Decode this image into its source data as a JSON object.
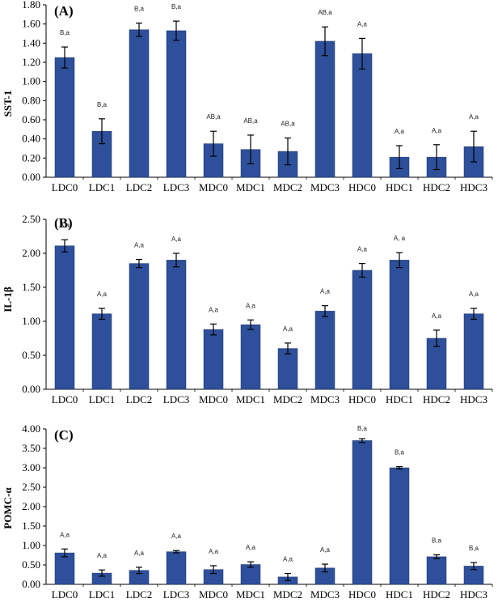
{
  "chart_data": [
    {
      "type": "bar",
      "panel_label": "(A)",
      "ylabel": "SST-1",
      "ylim": [
        0,
        1.8
      ],
      "yticks": [
        "0.00",
        "0.20",
        "0.40",
        "0.60",
        "0.80",
        "1.00",
        "1.20",
        "1.40",
        "1.60",
        "1.80"
      ],
      "categories": [
        "LDC0",
        "LDC1",
        "LDC2",
        "LDC3",
        "MDC0",
        "MDC1",
        "MDC2",
        "MDC3",
        "HDC0",
        "HDC1",
        "HDC2",
        "HDC3"
      ],
      "values": [
        1.25,
        0.48,
        1.54,
        1.53,
        0.35,
        0.29,
        0.27,
        1.42,
        1.29,
        0.21,
        0.21,
        0.32
      ],
      "errors": [
        0.11,
        0.13,
        0.07,
        0.1,
        0.13,
        0.15,
        0.14,
        0.15,
        0.16,
        0.12,
        0.13,
        0.16
      ],
      "labels": [
        "B,a",
        "B,a",
        "B,a",
        "B,a",
        "AB,a",
        "AB,a",
        "AB,a",
        "AB,a",
        "A,a",
        "A,a",
        "A,a",
        "A,a"
      ],
      "bar_color": "#2e4f99"
    },
    {
      "type": "bar",
      "panel_label": "(B)",
      "ylabel": "IL-1β",
      "ylim": [
        0,
        2.5
      ],
      "yticks": [
        "0.00",
        "0.50",
        "1.00",
        "1.50",
        "2.00",
        "2.50"
      ],
      "categories": [
        "LDC0",
        "LDC1",
        "LDC2",
        "LDC3",
        "MDC0",
        "MDC1",
        "MDC2",
        "MDC3",
        "HDC0",
        "HDC1",
        "HDC2",
        "HDC3"
      ],
      "values": [
        2.11,
        1.11,
        1.85,
        1.9,
        0.88,
        0.95,
        0.6,
        1.15,
        1.75,
        1.9,
        0.75,
        1.11
      ],
      "errors": [
        0.09,
        0.08,
        0.06,
        0.1,
        0.08,
        0.07,
        0.08,
        0.08,
        0.1,
        0.11,
        0.12,
        0.08
      ],
      "labels": [
        "A,a",
        "A,a",
        "A,a",
        "A,a",
        "A,a",
        "A,a",
        "A,a",
        "A,a",
        "A,a",
        "A, a",
        "A,a",
        "A,a"
      ],
      "bar_color": "#2e4f99"
    },
    {
      "type": "bar",
      "panel_label": "(C)",
      "ylabel": "POMC-α",
      "ylim": [
        0,
        4.0
      ],
      "yticks": [
        "0.00",
        "0.50",
        "1.00",
        "1.50",
        "2.00",
        "2.50",
        "3.00",
        "3.50",
        "4.00"
      ],
      "categories": [
        "LDC0",
        "LDC1",
        "LDC2",
        "LDC3",
        "MDC0",
        "MDC1",
        "MDC2",
        "MDC3",
        "HDC0",
        "HDC1",
        "HDC2",
        "HDC3"
      ],
      "values": [
        0.81,
        0.29,
        0.36,
        0.84,
        0.38,
        0.51,
        0.19,
        0.42,
        3.7,
        3.0,
        0.71,
        0.47
      ],
      "errors": [
        0.1,
        0.08,
        0.08,
        0.03,
        0.1,
        0.07,
        0.09,
        0.1,
        0.05,
        0.03,
        0.05,
        0.09
      ],
      "labels": [
        "A,a",
        "A,a",
        "A,a",
        "A,a",
        "A,a",
        "A,a",
        "A,a",
        "A,a",
        "B,a",
        "B,a",
        "B,a",
        "B,a"
      ],
      "bar_color": "#2e4f99"
    }
  ]
}
